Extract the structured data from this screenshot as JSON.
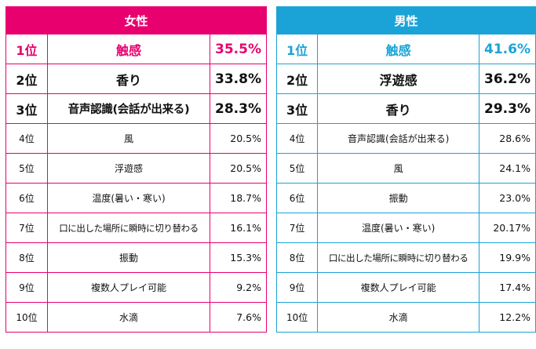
{
  "women": {
    "title": "女性",
    "rows": [
      {
        "rank": "1位",
        "item": "触感",
        "pct": "35.5%"
      },
      {
        "rank": "2位",
        "item": "香り",
        "pct": "33.8%"
      },
      {
        "rank": "3位",
        "item": "音声認識(会話が出来る)",
        "pct": "28.3%"
      },
      {
        "rank": "4位",
        "item": "風",
        "pct": "20.5%"
      },
      {
        "rank": "5位",
        "item": "浮遊感",
        "pct": "20.5%"
      },
      {
        "rank": "6位",
        "item": "温度(暑い・寒い)",
        "pct": "18.7%"
      },
      {
        "rank": "7位",
        "item": "口に出した場所に瞬時に切り替わる",
        "pct": "16.1%"
      },
      {
        "rank": "8位",
        "item": "振動",
        "pct": "15.3%"
      },
      {
        "rank": "9位",
        "item": "複数人プレイ可能",
        "pct": "9.2%"
      },
      {
        "rank": "10位",
        "item": "水滴",
        "pct": "7.6%"
      }
    ]
  },
  "men": {
    "title": "男性",
    "rows": [
      {
        "rank": "1位",
        "item": "触感",
        "pct": "41.6%"
      },
      {
        "rank": "2位",
        "item": "浮遊感",
        "pct": "36.2%"
      },
      {
        "rank": "3位",
        "item": "香り",
        "pct": "29.3%"
      },
      {
        "rank": "4位",
        "item": "音声認識(会話が出来る)",
        "pct": "28.6%"
      },
      {
        "rank": "5位",
        "item": "風",
        "pct": "24.1%"
      },
      {
        "rank": "6位",
        "item": "振動",
        "pct": "23.0%"
      },
      {
        "rank": "7位",
        "item": "温度(暑い・寒い)",
        "pct": "20.17%"
      },
      {
        "rank": "8位",
        "item": "口に出した場所に瞬時に切り替わる",
        "pct": "19.9%"
      },
      {
        "rank": "9位",
        "item": "複数人プレイ可能",
        "pct": "17.4%"
      },
      {
        "rank": "10位",
        "item": "水滴",
        "pct": "12.2%"
      }
    ]
  },
  "colors": {
    "women_accent": "#e8006f",
    "men_accent": "#1ba3d8"
  }
}
